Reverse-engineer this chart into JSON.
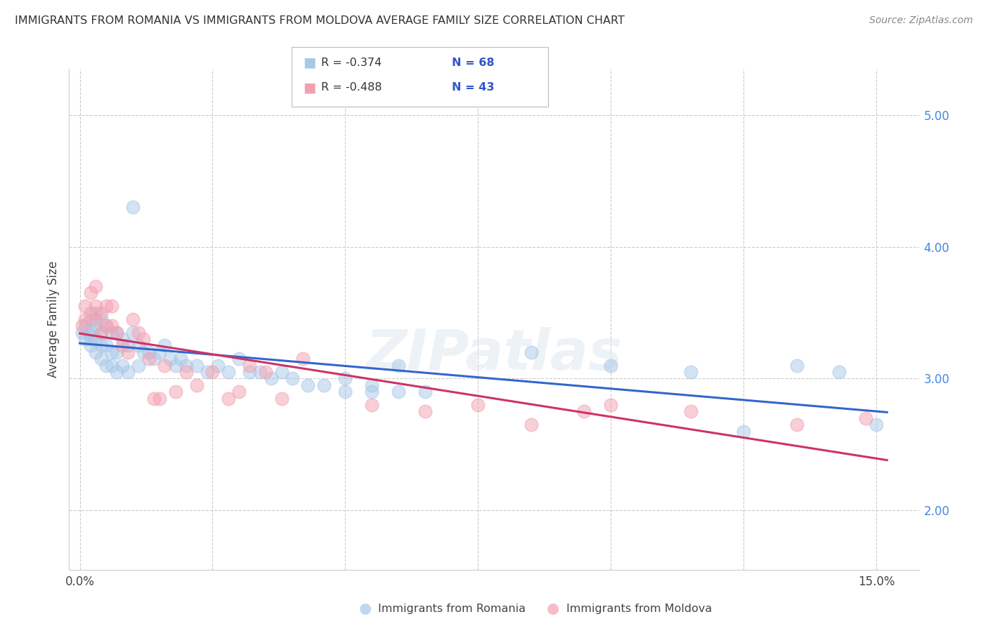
{
  "title": "IMMIGRANTS FROM ROMANIA VS IMMIGRANTS FROM MOLDOVA AVERAGE FAMILY SIZE CORRELATION CHART",
  "source": "Source: ZipAtlas.com",
  "ylabel": "Average Family Size",
  "right_yticks": [
    2.0,
    3.0,
    4.0,
    5.0
  ],
  "romania_R": -0.374,
  "romania_N": 68,
  "moldova_R": -0.488,
  "moldova_N": 43,
  "romania_color": "#a8c8e8",
  "moldova_color": "#f4a0b0",
  "romania_line_color": "#3366cc",
  "moldova_line_color": "#cc3366",
  "legend_label_romania": "Immigrants from Romania",
  "legend_label_moldova": "Immigrants from Moldova",
  "watermark": "ZIPatlas",
  "xlim_min": -0.002,
  "xlim_max": 0.158,
  "ylim_min": 1.55,
  "ylim_max": 5.35,
  "romania_x": [
    0.0005,
    0.001,
    0.001,
    0.0015,
    0.002,
    0.002,
    0.002,
    0.0025,
    0.003,
    0.003,
    0.003,
    0.003,
    0.004,
    0.004,
    0.004,
    0.004,
    0.005,
    0.005,
    0.005,
    0.006,
    0.006,
    0.006,
    0.007,
    0.007,
    0.007,
    0.008,
    0.008,
    0.009,
    0.009,
    0.01,
    0.01,
    0.011,
    0.011,
    0.012,
    0.013,
    0.014,
    0.015,
    0.016,
    0.017,
    0.018,
    0.019,
    0.02,
    0.022,
    0.024,
    0.026,
    0.028,
    0.03,
    0.032,
    0.034,
    0.036,
    0.038,
    0.04,
    0.043,
    0.046,
    0.05,
    0.055,
    0.06,
    0.065,
    0.05,
    0.055,
    0.06,
    0.085,
    0.1,
    0.115,
    0.125,
    0.135,
    0.143,
    0.15
  ],
  "romania_y": [
    3.35,
    3.4,
    3.3,
    3.35,
    3.45,
    3.3,
    3.25,
    3.35,
    3.5,
    3.4,
    3.3,
    3.2,
    3.45,
    3.35,
    3.25,
    3.15,
    3.4,
    3.25,
    3.1,
    3.35,
    3.2,
    3.1,
    3.35,
    3.2,
    3.05,
    3.3,
    3.1,
    3.25,
    3.05,
    4.3,
    3.35,
    3.25,
    3.1,
    3.2,
    3.2,
    3.15,
    3.2,
    3.25,
    3.15,
    3.1,
    3.15,
    3.1,
    3.1,
    3.05,
    3.1,
    3.05,
    3.15,
    3.05,
    3.05,
    3.0,
    3.05,
    3.0,
    2.95,
    2.95,
    2.9,
    2.9,
    3.1,
    2.9,
    3.0,
    2.95,
    2.9,
    3.2,
    3.1,
    3.05,
    2.6,
    3.1,
    3.05,
    2.65
  ],
  "moldova_x": [
    0.0005,
    0.001,
    0.001,
    0.002,
    0.002,
    0.003,
    0.003,
    0.003,
    0.004,
    0.004,
    0.005,
    0.005,
    0.006,
    0.006,
    0.007,
    0.008,
    0.009,
    0.01,
    0.011,
    0.012,
    0.013,
    0.014,
    0.015,
    0.016,
    0.018,
    0.02,
    0.022,
    0.025,
    0.028,
    0.03,
    0.032,
    0.035,
    0.038,
    0.042,
    0.055,
    0.065,
    0.075,
    0.085,
    0.095,
    0.1,
    0.115,
    0.135,
    0.148
  ],
  "moldova_y": [
    3.4,
    3.55,
    3.45,
    3.65,
    3.5,
    3.7,
    3.55,
    3.45,
    3.5,
    3.35,
    3.55,
    3.4,
    3.55,
    3.4,
    3.35,
    3.25,
    3.2,
    3.45,
    3.35,
    3.3,
    3.15,
    2.85,
    2.85,
    3.1,
    2.9,
    3.05,
    2.95,
    3.05,
    2.85,
    2.9,
    3.1,
    3.05,
    2.85,
    3.15,
    2.8,
    2.75,
    2.8,
    2.65,
    2.75,
    2.8,
    2.75,
    2.65,
    2.7
  ]
}
